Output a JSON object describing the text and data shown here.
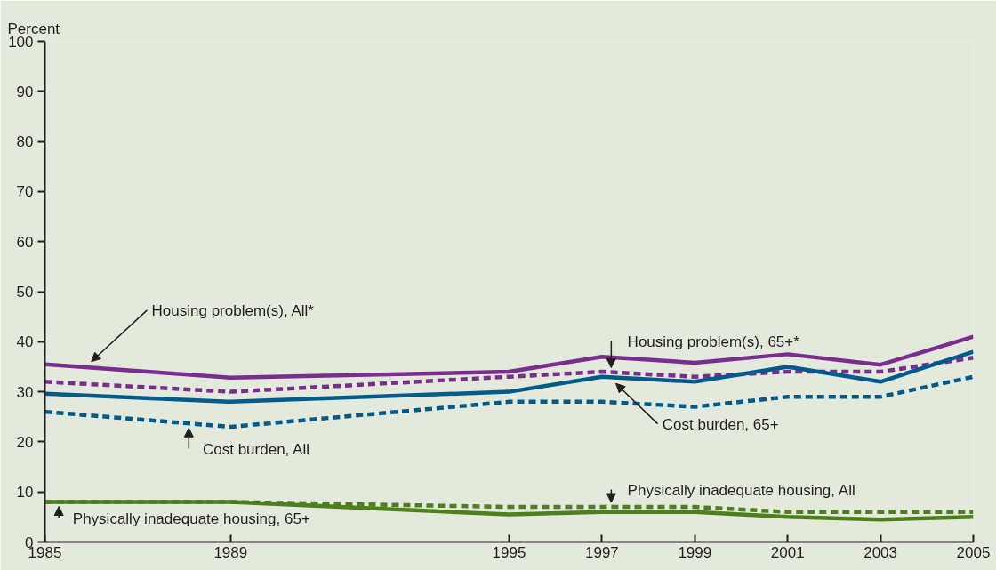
{
  "chart_data": {
    "type": "line",
    "ylabel": "Percent",
    "x": [
      1985,
      1989,
      1995,
      1997,
      1999,
      2001,
      2003,
      2005
    ],
    "xlim": [
      1985,
      2005
    ],
    "xticks": [
      1985,
      1989,
      1995,
      1997,
      1999,
      2001,
      2003,
      2005
    ],
    "ylim": [
      0,
      100
    ],
    "yticks": [
      0,
      10,
      20,
      30,
      40,
      50,
      60,
      70,
      80,
      90,
      100
    ],
    "grid": false,
    "legend": false,
    "series": [
      {
        "name": "Housing problem(s), All*",
        "color": "#7b2d8e",
        "line_style": "solid",
        "values": [
          35.5,
          32.8,
          34,
          37,
          35.8,
          37.5,
          35.4,
          41
        ]
      },
      {
        "name": "Housing problem(s), 65+*",
        "color": "#7b2d8e",
        "line_style": "dashed",
        "values": [
          32,
          30,
          33,
          34,
          33,
          34,
          34,
          36.8
        ]
      },
      {
        "name": "Cost burden, 65+",
        "color": "#005a8c",
        "line_style": "solid",
        "values": [
          29.6,
          28,
          30,
          33,
          32,
          35,
          32,
          38
        ]
      },
      {
        "name": "Cost burden, All",
        "color": "#005a8c",
        "line_style": "dashed",
        "values": [
          26,
          23,
          28,
          28,
          27,
          29,
          29,
          33
        ]
      },
      {
        "name": "Physically inadequate housing, All",
        "color": "#4d7f1e",
        "line_style": "dashed",
        "values": [
          8,
          8,
          7,
          7,
          7,
          6,
          6,
          6
        ]
      },
      {
        "name": "Physically inadequate housing, 65+",
        "color": "#4d7f1e",
        "line_style": "solid",
        "values": [
          8,
          8,
          5.5,
          6,
          6,
          5,
          4.5,
          5
        ]
      }
    ]
  }
}
